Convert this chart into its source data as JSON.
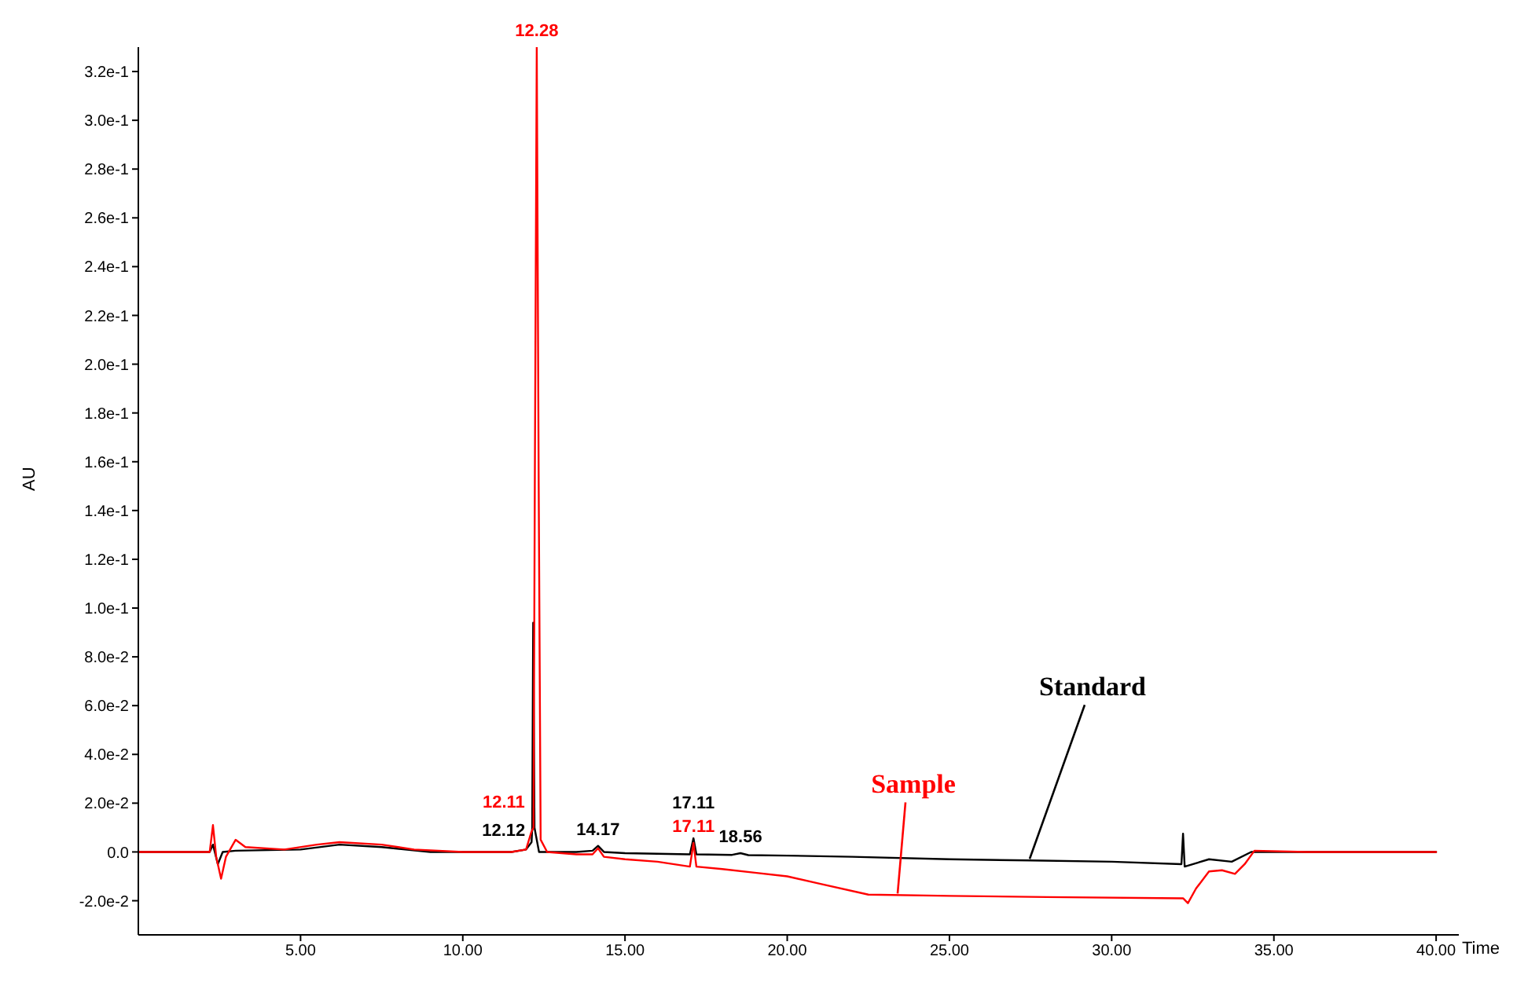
{
  "chart_data": {
    "type": "line",
    "xlabel": "Time",
    "ylabel": "AU",
    "xlim": [
      0,
      40.7
    ],
    "xticks": [
      {
        "value": 5,
        "label": "5.00"
      },
      {
        "value": 10,
        "label": "10.00"
      },
      {
        "value": 15,
        "label": "15.00"
      },
      {
        "value": 20,
        "label": "20.00"
      },
      {
        "value": 25,
        "label": "25.00"
      },
      {
        "value": 30,
        "label": "30.00"
      },
      {
        "value": 35,
        "label": "35.00"
      },
      {
        "value": 40,
        "label": "40.00"
      }
    ],
    "ylim": [
      -0.034,
      0.33
    ],
    "yticks": [
      {
        "value": -0.02,
        "label": "-2.0e-2"
      },
      {
        "value": 0,
        "label": "0.0"
      },
      {
        "value": 0.02,
        "label": "2.0e-2"
      },
      {
        "value": 0.04,
        "label": "4.0e-2"
      },
      {
        "value": 0.06,
        "label": "6.0e-2"
      },
      {
        "value": 0.08,
        "label": "8.0e-2"
      },
      {
        "value": 0.1,
        "label": "1.0e-1"
      },
      {
        "value": 0.12,
        "label": "1.2e-1"
      },
      {
        "value": 0.14,
        "label": "1.4e-1"
      },
      {
        "value": 0.16,
        "label": "1.6e-1"
      },
      {
        "value": 0.18,
        "label": "1.8e-1"
      },
      {
        "value": 0.2,
        "label": "2.0e-1"
      },
      {
        "value": 0.22,
        "label": "2.2e-1"
      },
      {
        "value": 0.24,
        "label": "2.4e-1"
      },
      {
        "value": 0.26,
        "label": "2.6e-1"
      },
      {
        "value": 0.28,
        "label": "2.8e-1"
      },
      {
        "value": 0.3,
        "label": "3.0e-1"
      },
      {
        "value": 0.32,
        "label": "3.2e-1"
      }
    ],
    "grid": false,
    "legend": false,
    "marker": "none",
    "series": [
      {
        "name": "Standard",
        "color": "#000000",
        "x": [
          0,
          2.2,
          2.3,
          2.45,
          2.6,
          3,
          5,
          6.2,
          7.5,
          9,
          11.5,
          11.95,
          12.12,
          12.14,
          12.17,
          12.21,
          12.35,
          13.5,
          14,
          14.17,
          14.35,
          15,
          17,
          17.11,
          17.2,
          18.3,
          18.56,
          18.8,
          20,
          22,
          25,
          27.5,
          30,
          32.15,
          32.2,
          32.25,
          33,
          33.7,
          34.3,
          36,
          40
        ],
        "values": [
          0,
          0,
          0.003,
          -0.005,
          0,
          0.0005,
          0.001,
          0.003,
          0.002,
          0,
          0,
          0.001,
          0.004,
          0.01,
          0.094,
          0.01,
          0,
          0,
          0.0005,
          0.0025,
          0,
          -0.0005,
          -0.001,
          0.0056,
          -0.001,
          -0.0012,
          -0.0005,
          -0.0013,
          -0.0015,
          -0.002,
          -0.003,
          -0.0035,
          -0.004,
          -0.005,
          0.0075,
          -0.006,
          -0.003,
          -0.004,
          0,
          0,
          0
        ]
      },
      {
        "name": "Sample",
        "color": "#ff0000",
        "x": [
          0,
          2.2,
          2.3,
          2.4,
          2.55,
          2.7,
          3,
          3.3,
          4.5,
          5.5,
          6.2,
          7.5,
          8.5,
          10,
          11.5,
          11.95,
          12.11,
          12.18,
          12.22,
          12.28,
          12.34,
          12.4,
          12.6,
          13.5,
          14,
          14.17,
          14.35,
          15,
          16,
          17,
          17.11,
          17.2,
          18,
          19,
          20,
          21,
          22.5,
          25,
          28,
          32.2,
          32.35,
          32.6,
          33,
          33.4,
          33.8,
          34.1,
          34.4,
          36,
          40
        ],
        "values": [
          0,
          0,
          0.011,
          -0.002,
          -0.011,
          -0.002,
          0.005,
          0.002,
          0.001,
          0.003,
          0.004,
          0.003,
          0.001,
          0,
          0,
          0.001,
          0.008,
          0.01,
          0.15,
          0.33,
          0.15,
          0.005,
          0,
          -0.001,
          -0.001,
          0.0015,
          -0.002,
          -0.003,
          -0.004,
          -0.006,
          0.0037,
          -0.006,
          -0.007,
          -0.0085,
          -0.01,
          -0.013,
          -0.0175,
          -0.018,
          -0.0185,
          -0.019,
          -0.021,
          -0.015,
          -0.008,
          -0.0075,
          -0.009,
          -0.005,
          0.0005,
          0,
          0
        ]
      }
    ],
    "annotations": [
      {
        "text": "12.28",
        "x": 12.28,
        "y": 0.33
      },
      {
        "text": "12.11",
        "x": 12.11,
        "y": 0.008
      },
      {
        "text": "12.12",
        "x": 12.12,
        "y": 0.004
      },
      {
        "text": "14.17",
        "x": 14.17,
        "y": 0.0025
      },
      {
        "text": "17.11",
        "x": 17.11,
        "y": 0.0056
      },
      {
        "text": "17.11",
        "x": 17.11,
        "y": 0.0037
      },
      {
        "text": "18.56",
        "x": 18.56,
        "y": -0.0005
      }
    ]
  }
}
